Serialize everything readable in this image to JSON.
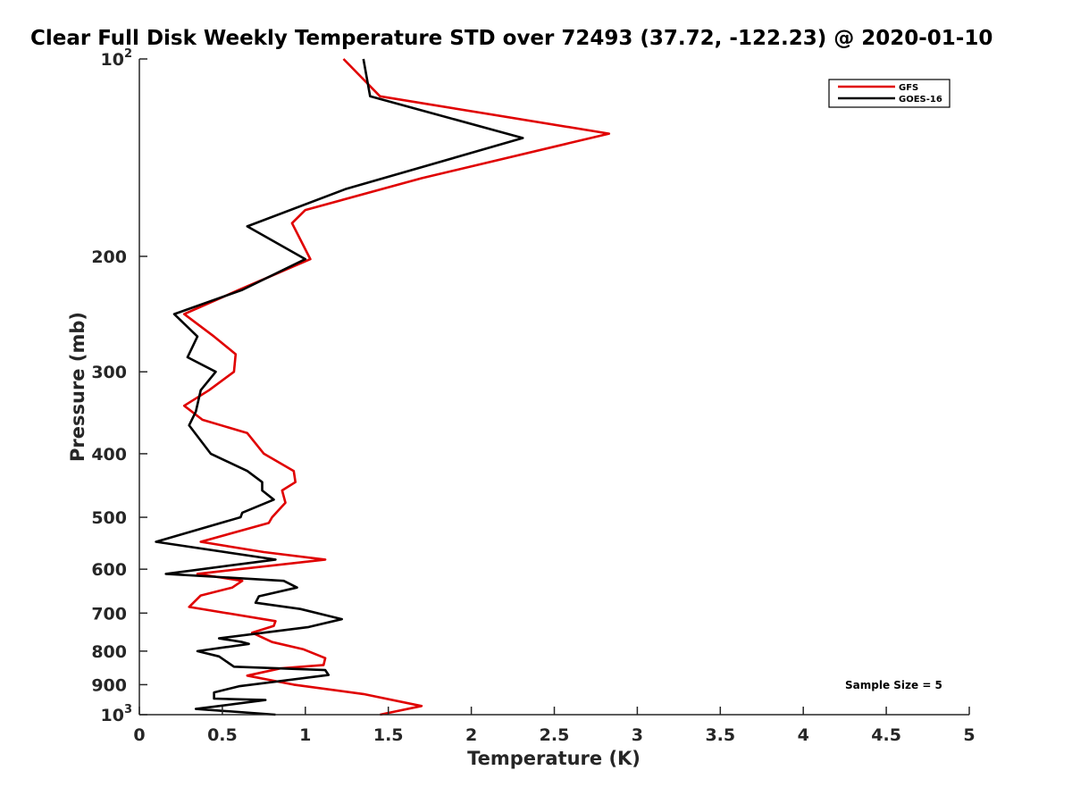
{
  "chart_data": {
    "type": "line",
    "title": "Clear Full Disk Weekly Temperature STD over 72493 (37.72, -122.23) @ 2020-01-10",
    "xlabel": "Temperature (K)",
    "ylabel": "Pressure (mb)",
    "xlim": [
      0,
      5
    ],
    "ylim": [
      100,
      1000
    ],
    "y_scale": "log",
    "y_reversed": true,
    "grid": false,
    "legend_position": "top-right",
    "x_ticks": [
      "0",
      "0.5",
      "1",
      "1.5",
      "2",
      "2.5",
      "3",
      "3.5",
      "4",
      "4.5",
      "5"
    ],
    "y_ticks": [
      {
        "value": 100,
        "base": "10",
        "exp": "2"
      },
      {
        "value": 200,
        "label": "200"
      },
      {
        "value": 300,
        "label": "300"
      },
      {
        "value": 400,
        "label": "400"
      },
      {
        "value": 500,
        "label": "500"
      },
      {
        "value": 600,
        "label": "600"
      },
      {
        "value": 700,
        "label": "700"
      },
      {
        "value": 800,
        "label": "800"
      },
      {
        "value": 900,
        "label": "900"
      },
      {
        "value": 1000,
        "base": "10",
        "exp": "3"
      }
    ],
    "annotation": "Sample Size = 5",
    "series": [
      {
        "name": "GFS",
        "color": "#e00000",
        "points": [
          [
            1.23,
            100
          ],
          [
            1.45,
            114
          ],
          [
            2.83,
            130
          ],
          [
            1.7,
            152
          ],
          [
            1.0,
            170
          ],
          [
            0.92,
            178
          ],
          [
            1.03,
            202
          ],
          [
            0.6,
            225
          ],
          [
            0.27,
            245
          ],
          [
            0.45,
            265
          ],
          [
            0.58,
            282
          ],
          [
            0.57,
            300
          ],
          [
            0.42,
            320
          ],
          [
            0.27,
            338
          ],
          [
            0.38,
            355
          ],
          [
            0.65,
            372
          ],
          [
            0.75,
            400
          ],
          [
            0.93,
            425
          ],
          [
            0.94,
            442
          ],
          [
            0.86,
            455
          ],
          [
            0.88,
            475
          ],
          [
            0.8,
            500
          ],
          [
            0.78,
            510
          ],
          [
            0.37,
            545
          ],
          [
            0.75,
            565
          ],
          [
            1.12,
            580
          ],
          [
            0.35,
            610
          ],
          [
            0.62,
            625
          ],
          [
            0.56,
            640
          ],
          [
            0.37,
            658
          ],
          [
            0.3,
            685
          ],
          [
            0.82,
            720
          ],
          [
            0.81,
            732
          ],
          [
            0.68,
            750
          ],
          [
            0.8,
            775
          ],
          [
            0.99,
            795
          ],
          [
            1.12,
            820
          ],
          [
            1.11,
            840
          ],
          [
            0.85,
            850
          ],
          [
            0.65,
            872
          ],
          [
            0.93,
            900
          ],
          [
            1.35,
            930
          ],
          [
            1.7,
            970
          ],
          [
            1.45,
            1000
          ]
        ]
      },
      {
        "name": "GOES-16",
        "color": "#000000",
        "points": [
          [
            1.35,
            100
          ],
          [
            1.39,
            114
          ],
          [
            2.31,
            132
          ],
          [
            1.24,
            158
          ],
          [
            0.65,
            180
          ],
          [
            1.0,
            202
          ],
          [
            0.62,
            225
          ],
          [
            0.21,
            245
          ],
          [
            0.35,
            265
          ],
          [
            0.29,
            285
          ],
          [
            0.46,
            300
          ],
          [
            0.37,
            320
          ],
          [
            0.34,
            345
          ],
          [
            0.3,
            362
          ],
          [
            0.43,
            400
          ],
          [
            0.65,
            425
          ],
          [
            0.74,
            442
          ],
          [
            0.74,
            455
          ],
          [
            0.81,
            470
          ],
          [
            0.62,
            492
          ],
          [
            0.61,
            500
          ],
          [
            0.1,
            545
          ],
          [
            0.82,
            580
          ],
          [
            0.16,
            610
          ],
          [
            0.87,
            625
          ],
          [
            0.95,
            640
          ],
          [
            0.72,
            660
          ],
          [
            0.7,
            675
          ],
          [
            0.97,
            690
          ],
          [
            1.22,
            715
          ],
          [
            1.02,
            735
          ],
          [
            0.48,
            765
          ],
          [
            0.62,
            775
          ],
          [
            0.66,
            780
          ],
          [
            0.35,
            800
          ],
          [
            0.48,
            815
          ],
          [
            0.57,
            845
          ],
          [
            1.12,
            855
          ],
          [
            1.14,
            870
          ],
          [
            0.6,
            905
          ],
          [
            0.45,
            925
          ],
          [
            0.45,
            945
          ],
          [
            0.76,
            950
          ],
          [
            0.34,
            980
          ],
          [
            0.82,
            1000
          ]
        ]
      }
    ]
  }
}
